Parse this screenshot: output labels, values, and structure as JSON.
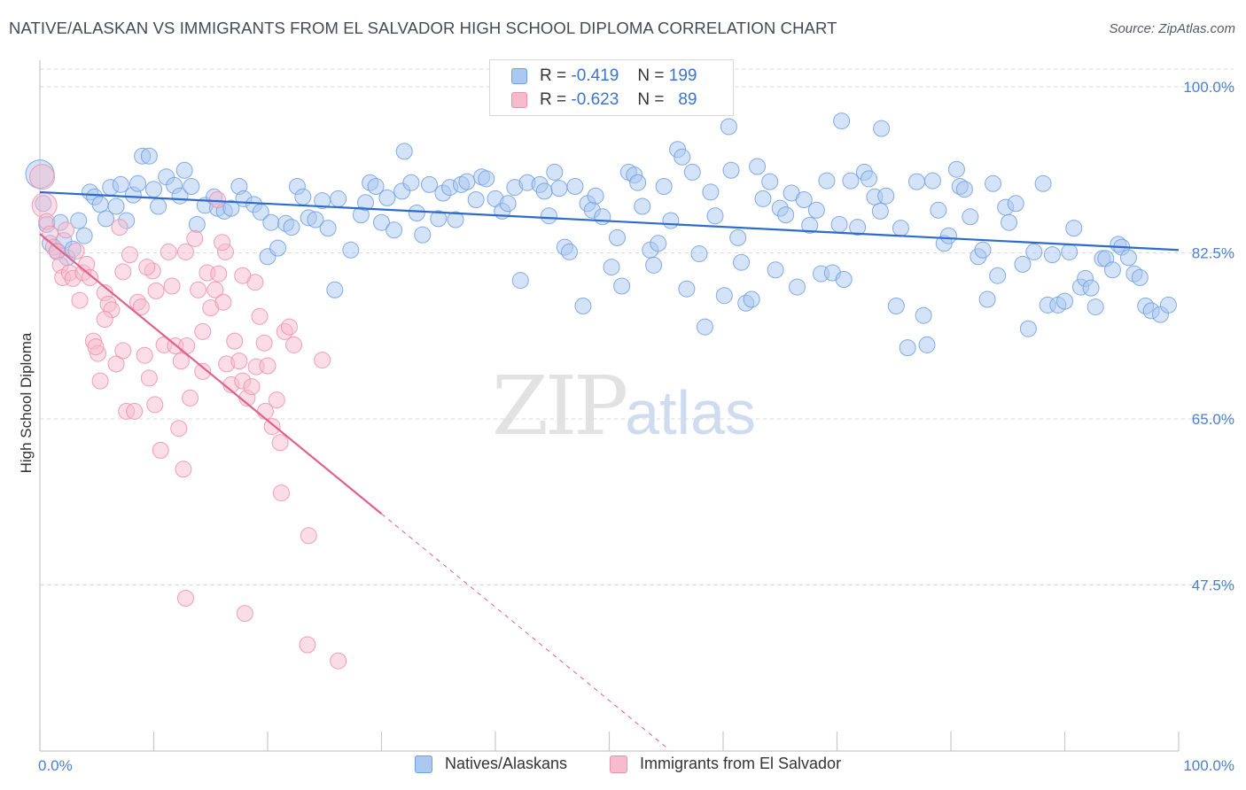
{
  "title": "NATIVE/ALASKAN VS IMMIGRANTS FROM EL SALVADOR HIGH SCHOOL DIPLOMA CORRELATION CHART",
  "source": "Source: ZipAtlas.com",
  "watermark": {
    "zip": "ZIP",
    "atlas": "atlas"
  },
  "legend_top": {
    "rows": [
      {
        "r_label": "R =",
        "r_value": "-0.419",
        "n_label": "N =",
        "n_value": "199"
      },
      {
        "r_label": "R =",
        "r_value": "-0.623",
        "n_label": "N =",
        "n_value": "89"
      }
    ]
  },
  "colors": {
    "blue_fill": "#aac8f0",
    "blue_stroke": "#6f9fe0",
    "blue_line": "#2b6ccc",
    "pink_fill": "#f6bccd",
    "pink_stroke": "#ee8fac",
    "pink_line": "#e0608e",
    "grid": "#d9d9d9",
    "axis": "#c8c8c8",
    "tick_text": "#4a7fd0"
  },
  "chart_data": {
    "type": "scatter",
    "title": "NATIVE/ALASKAN VS IMMIGRANTS FROM EL SALVADOR HIGH SCHOOL DIPLOMA CORRELATION CHART",
    "xlabel": "",
    "ylabel": "High School Diploma",
    "xlim": [
      0,
      100
    ],
    "ylim": [
      30,
      100
    ],
    "x_tick_labels": [
      "0.0%",
      "100.0%"
    ],
    "y_ticks": [
      {
        "value": 100,
        "label": "100.0%"
      },
      {
        "value": 82.5,
        "label": "82.5%"
      },
      {
        "value": 65,
        "label": "65.0%"
      },
      {
        "value": 47.5,
        "label": "47.5%"
      }
    ],
    "grid": true,
    "legend_position": "bottom",
    "series": [
      {
        "name": "Natives/Alaskans",
        "color": "#aac8f0",
        "stroke": "#6f9fe0",
        "r": -0.419,
        "n": 199,
        "trend": {
          "x0": 0,
          "y0": 88.9,
          "x1": 100,
          "y1": 82.8
        },
        "points": [
          [
            0,
            90.8
          ],
          [
            0.3,
            87.7
          ],
          [
            0.6,
            85.5
          ],
          [
            0.9,
            83.5
          ],
          [
            1.5,
            82.7
          ],
          [
            1.8,
            85.7
          ],
          [
            2.1,
            83.8
          ],
          [
            2.4,
            82.0
          ],
          [
            2.9,
            82.9
          ],
          [
            3.4,
            85.9
          ],
          [
            3.9,
            84.3
          ],
          [
            4.4,
            88.9
          ],
          [
            4.8,
            88.4
          ],
          [
            5.3,
            87.6
          ],
          [
            5.8,
            86.1
          ],
          [
            6.2,
            89.4
          ],
          [
            6.7,
            87.4
          ],
          [
            7.1,
            89.7
          ],
          [
            7.6,
            85.9
          ],
          [
            8.2,
            88.6
          ],
          [
            8.6,
            89.8
          ],
          [
            9.0,
            92.7
          ],
          [
            9.6,
            92.7
          ],
          [
            10.0,
            89.2
          ],
          [
            10.4,
            87.4
          ],
          [
            11.1,
            90.5
          ],
          [
            11.8,
            89.6
          ],
          [
            12.3,
            88.5
          ],
          [
            12.7,
            91.2
          ],
          [
            13.3,
            89.5
          ],
          [
            13.8,
            85.5
          ],
          [
            14.5,
            87.5
          ],
          [
            15.3,
            88.4
          ],
          [
            15.6,
            87.2
          ],
          [
            16.2,
            86.9
          ],
          [
            16.8,
            87.2
          ],
          [
            17.5,
            89.5
          ],
          [
            17.9,
            88.2
          ],
          [
            18.8,
            87.6
          ],
          [
            19.4,
            86.8
          ],
          [
            20.0,
            82.1
          ],
          [
            20.3,
            85.7
          ],
          [
            20.9,
            83.0
          ],
          [
            21.6,
            85.6
          ],
          [
            22.1,
            85.2
          ],
          [
            22.6,
            89.5
          ],
          [
            23.1,
            88.4
          ],
          [
            23.6,
            86.2
          ],
          [
            24.2,
            86.0
          ],
          [
            24.8,
            88.0
          ],
          [
            25.3,
            85.1
          ],
          [
            25.9,
            78.6
          ],
          [
            26.2,
            88.2
          ],
          [
            27.3,
            82.8
          ],
          [
            28.2,
            86.5
          ],
          [
            28.6,
            87.8
          ],
          [
            29.0,
            89.9
          ],
          [
            29.5,
            89.5
          ],
          [
            30.0,
            85.7
          ],
          [
            30.5,
            88.3
          ],
          [
            31.1,
            84.9
          ],
          [
            31.8,
            89.0
          ],
          [
            32.0,
            93.2
          ],
          [
            32.6,
            89.9
          ],
          [
            33.1,
            86.7
          ],
          [
            33.6,
            84.4
          ],
          [
            34.2,
            89.7
          ],
          [
            35.0,
            86.1
          ],
          [
            35.4,
            88.8
          ],
          [
            36.0,
            89.4
          ],
          [
            36.5,
            86.0
          ],
          [
            37.0,
            89.7
          ],
          [
            37.5,
            90.0
          ],
          [
            38.3,
            88.1
          ],
          [
            38.8,
            90.5
          ],
          [
            39.2,
            90.3
          ],
          [
            40.0,
            88.2
          ],
          [
            40.6,
            86.9
          ],
          [
            41.1,
            87.7
          ],
          [
            41.7,
            89.4
          ],
          [
            42.2,
            79.6
          ],
          [
            42.8,
            89.9
          ],
          [
            43.9,
            89.7
          ],
          [
            44.3,
            89.0
          ],
          [
            44.7,
            86.4
          ],
          [
            45.2,
            91.0
          ],
          [
            45.6,
            89.3
          ],
          [
            46.1,
            83.1
          ],
          [
            46.5,
            82.6
          ],
          [
            47.0,
            89.5
          ],
          [
            47.7,
            76.9
          ],
          [
            48.1,
            87.7
          ],
          [
            48.5,
            87.0
          ],
          [
            48.8,
            88.5
          ],
          [
            49.4,
            86.3
          ],
          [
            50.2,
            81.0
          ],
          [
            50.7,
            84.1
          ],
          [
            51.1,
            79.0
          ],
          [
            51.7,
            91.0
          ],
          [
            52.2,
            90.7
          ],
          [
            52.5,
            89.9
          ],
          [
            52.9,
            87.4
          ],
          [
            53.6,
            82.8
          ],
          [
            53.9,
            81.2
          ],
          [
            54.3,
            83.5
          ],
          [
            54.8,
            89.5
          ],
          [
            55.4,
            85.9
          ],
          [
            56.0,
            93.4
          ],
          [
            56.4,
            92.6
          ],
          [
            56.8,
            78.7
          ],
          [
            57.3,
            91.0
          ],
          [
            57.9,
            82.4
          ],
          [
            58.4,
            74.7
          ],
          [
            58.9,
            88.9
          ],
          [
            59.3,
            86.4
          ],
          [
            60.1,
            78.0
          ],
          [
            60.7,
            91.2
          ],
          [
            61.3,
            84.1
          ],
          [
            61.6,
            81.5
          ],
          [
            62.0,
            77.2
          ],
          [
            62.5,
            77.6
          ],
          [
            63.0,
            91.6
          ],
          [
            63.5,
            88.2
          ],
          [
            64.1,
            90.0
          ],
          [
            64.6,
            80.7
          ],
          [
            65.0,
            87.2
          ],
          [
            65.5,
            86.5
          ],
          [
            66.0,
            88.8
          ],
          [
            66.5,
            78.9
          ],
          [
            67.1,
            88.1
          ],
          [
            67.6,
            85.4
          ],
          [
            68.2,
            87.0
          ],
          [
            68.6,
            80.3
          ],
          [
            69.1,
            90.1
          ],
          [
            69.6,
            80.4
          ],
          [
            70.2,
            85.5
          ],
          [
            70.6,
            79.7
          ],
          [
            71.2,
            90.1
          ],
          [
            71.8,
            85.2
          ],
          [
            72.4,
            91.0
          ],
          [
            72.8,
            90.3
          ],
          [
            73.3,
            88.4
          ],
          [
            73.8,
            86.9
          ],
          [
            74.3,
            88.5
          ],
          [
            75.2,
            76.9
          ],
          [
            75.6,
            85.1
          ],
          [
            76.2,
            72.5
          ],
          [
            77.0,
            90.0
          ],
          [
            77.6,
            75.9
          ],
          [
            77.9,
            72.8
          ],
          [
            78.4,
            90.1
          ],
          [
            78.9,
            87.0
          ],
          [
            79.4,
            83.5
          ],
          [
            79.8,
            84.3
          ],
          [
            80.5,
            91.3
          ],
          [
            80.8,
            89.5
          ],
          [
            81.2,
            89.2
          ],
          [
            81.7,
            86.3
          ],
          [
            82.4,
            82.1
          ],
          [
            82.8,
            82.8
          ],
          [
            83.2,
            77.6
          ],
          [
            83.7,
            89.8
          ],
          [
            84.1,
            80.1
          ],
          [
            84.8,
            87.3
          ],
          [
            85.1,
            85.7
          ],
          [
            85.7,
            87.7
          ],
          [
            86.3,
            81.3
          ],
          [
            86.8,
            74.5
          ],
          [
            87.3,
            82.6
          ],
          [
            88.1,
            89.8
          ],
          [
            88.5,
            77.0
          ],
          [
            88.9,
            82.3
          ],
          [
            89.4,
            77.0
          ],
          [
            90.0,
            77.4
          ],
          [
            90.4,
            82.6
          ],
          [
            90.8,
            85.1
          ],
          [
            91.4,
            78.9
          ],
          [
            91.8,
            79.8
          ],
          [
            92.3,
            78.8
          ],
          [
            92.7,
            76.8
          ],
          [
            93.3,
            81.9
          ],
          [
            93.6,
            81.9
          ],
          [
            94.2,
            80.7
          ],
          [
            94.7,
            83.4
          ],
          [
            95.0,
            83.1
          ],
          [
            95.6,
            82.0
          ],
          [
            96.1,
            80.3
          ],
          [
            96.6,
            79.9
          ],
          [
            97.1,
            76.9
          ],
          [
            97.6,
            76.4
          ],
          [
            98.4,
            76.0
          ],
          [
            99.1,
            77.0
          ],
          [
            60.5,
            95.8
          ],
          [
            70.4,
            96.4
          ],
          [
            73.9,
            95.6
          ]
        ]
      },
      {
        "name": "Immigrants from El Salvador",
        "color": "#f6bccd",
        "stroke": "#ee8fac",
        "r": -0.623,
        "n": 89,
        "trend": {
          "x0": 0,
          "y0": 84.5,
          "x1": 30,
          "y1": 55.0,
          "dash_to_x": 55,
          "dash_to_y": 30.4
        },
        "points": [
          [
            0.2,
            90.5
          ],
          [
            0.4,
            87.5
          ],
          [
            0.6,
            85.8
          ],
          [
            0.9,
            84.5
          ],
          [
            1.2,
            83.1
          ],
          [
            1.5,
            82.6
          ],
          [
            1.8,
            81.2
          ],
          [
            2.0,
            79.9
          ],
          [
            2.3,
            84.9
          ],
          [
            2.6,
            80.4
          ],
          [
            2.9,
            79.8
          ],
          [
            3.2,
            82.7
          ],
          [
            3.5,
            77.5
          ],
          [
            3.8,
            80.4
          ],
          [
            4.1,
            81.3
          ],
          [
            4.4,
            79.9
          ],
          [
            4.7,
            73.2
          ],
          [
            5.1,
            71.9
          ],
          [
            5.3,
            69.0
          ],
          [
            5.7,
            78.3
          ],
          [
            6.0,
            77.1
          ],
          [
            6.3,
            76.5
          ],
          [
            6.7,
            70.8
          ],
          [
            7.0,
            85.2
          ],
          [
            7.3,
            72.2
          ],
          [
            7.6,
            65.8
          ],
          [
            7.9,
            82.3
          ],
          [
            8.3,
            65.8
          ],
          [
            8.6,
            77.3
          ],
          [
            8.9,
            76.8
          ],
          [
            9.2,
            71.7
          ],
          [
            9.6,
            69.3
          ],
          [
            9.9,
            80.6
          ],
          [
            10.2,
            78.5
          ],
          [
            10.6,
            61.7
          ],
          [
            10.9,
            72.8
          ],
          [
            11.3,
            82.6
          ],
          [
            11.6,
            79.0
          ],
          [
            11.9,
            72.7
          ],
          [
            12.2,
            64.0
          ],
          [
            12.6,
            59.7
          ],
          [
            12.9,
            72.7
          ],
          [
            13.2,
            67.2
          ],
          [
            13.6,
            84.0
          ],
          [
            13.9,
            78.6
          ],
          [
            14.3,
            74.2
          ],
          [
            14.7,
            80.4
          ],
          [
            15.0,
            76.7
          ],
          [
            15.4,
            78.6
          ],
          [
            15.7,
            80.3
          ],
          [
            16.1,
            77.3
          ],
          [
            16.4,
            70.8
          ],
          [
            16.8,
            68.6
          ],
          [
            17.1,
            73.2
          ],
          [
            17.5,
            71.1
          ],
          [
            17.8,
            69.0
          ],
          [
            18.2,
            67.2
          ],
          [
            18.6,
            68.4
          ],
          [
            19.0,
            70.5
          ],
          [
            19.3,
            75.8
          ],
          [
            19.7,
            73.0
          ],
          [
            20.0,
            70.6
          ],
          [
            20.4,
            64.2
          ],
          [
            20.8,
            67.0
          ],
          [
            21.1,
            62.5
          ],
          [
            21.5,
            74.2
          ],
          [
            21.9,
            74.7
          ],
          [
            22.3,
            72.8
          ],
          [
            12.8,
            82.6
          ],
          [
            9.4,
            81.0
          ],
          [
            18.9,
            79.4
          ],
          [
            16.3,
            82.6
          ],
          [
            7.3,
            80.5
          ],
          [
            5.7,
            75.5
          ],
          [
            4.9,
            72.6
          ],
          [
            10.1,
            66.5
          ],
          [
            12.4,
            71.1
          ],
          [
            14.3,
            70.0
          ],
          [
            21.2,
            57.2
          ],
          [
            23.6,
            52.7
          ],
          [
            12.8,
            46.1
          ],
          [
            18.0,
            44.5
          ],
          [
            23.5,
            41.2
          ],
          [
            26.2,
            39.5
          ],
          [
            15.6,
            88.1
          ],
          [
            16.0,
            83.6
          ],
          [
            17.8,
            80.1
          ],
          [
            24.8,
            71.2
          ],
          [
            19.8,
            65.8
          ]
        ]
      }
    ]
  },
  "legend_bottom": [
    {
      "label": "Natives/Alaskans"
    },
    {
      "label": "Immigrants from El Salvador"
    }
  ]
}
